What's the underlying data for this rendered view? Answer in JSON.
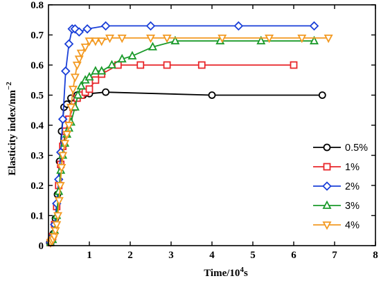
{
  "chart_data": {
    "type": "line",
    "title": "",
    "xlabel_main": "Time/10",
    "xlabel_sup": "4",
    "xlabel_tail": "s",
    "ylabel_main": "Elasticity index/nm",
    "ylabel_sup": "−2",
    "xlim": [
      0,
      8
    ],
    "ylim": [
      0,
      0.8
    ],
    "x_ticks": [
      1,
      2,
      3,
      4,
      5,
      6,
      7,
      8
    ],
    "x_tick_labels": [
      "1",
      "2",
      "3",
      "4",
      "5",
      "6",
      "7",
      "8"
    ],
    "y_ticks": [
      0,
      0.1,
      0.2,
      0.3,
      0.4,
      0.5,
      0.6,
      0.7,
      0.8
    ],
    "y_tick_labels": [
      "0",
      "0.1",
      "0.2",
      "0.3",
      "0.4",
      "0.5",
      "0.6",
      "0.7",
      "0.8"
    ],
    "legend_position": "bottom-right",
    "grid": false,
    "series": [
      {
        "name": "0.5%",
        "color": "#000000",
        "marker": "circle",
        "x": [
          0.03,
          0.08,
          0.12,
          0.17,
          0.22,
          0.27,
          0.32,
          0.38,
          0.45,
          0.55,
          0.7,
          0.85,
          1.0,
          1.4,
          4.0,
          6.7
        ],
        "y": [
          0.01,
          0.02,
          0.04,
          0.09,
          0.17,
          0.28,
          0.38,
          0.46,
          0.47,
          0.49,
          0.5,
          0.5,
          0.505,
          0.51,
          0.5,
          0.5
        ]
      },
      {
        "name": "1%",
        "color": "#e8262a",
        "marker": "square",
        "x": [
          0.05,
          0.1,
          0.15,
          0.2,
          0.25,
          0.3,
          0.35,
          0.42,
          0.5,
          0.6,
          0.7,
          0.8,
          0.9,
          1.0,
          1.15,
          1.3,
          1.7,
          2.25,
          2.9,
          3.75,
          6.0
        ],
        "y": [
          0.01,
          0.03,
          0.07,
          0.13,
          0.2,
          0.27,
          0.33,
          0.38,
          0.42,
          0.46,
          0.49,
          0.5,
          0.51,
          0.52,
          0.55,
          0.57,
          0.6,
          0.6,
          0.6,
          0.6,
          0.6
        ]
      },
      {
        "name": "2%",
        "color": "#1a3fd8",
        "marker": "diamond",
        "x": [
          0.05,
          0.1,
          0.15,
          0.2,
          0.25,
          0.3,
          0.35,
          0.42,
          0.5,
          0.58,
          0.65,
          0.75,
          0.95,
          1.4,
          2.5,
          4.65,
          6.5
        ],
        "y": [
          0.01,
          0.03,
          0.07,
          0.14,
          0.22,
          0.31,
          0.42,
          0.58,
          0.67,
          0.72,
          0.72,
          0.71,
          0.72,
          0.73,
          0.73,
          0.73,
          0.73
        ]
      },
      {
        "name": "3%",
        "color": "#1a9a2a",
        "marker": "triangle-up",
        "x": [
          0.05,
          0.1,
          0.15,
          0.2,
          0.25,
          0.3,
          0.35,
          0.4,
          0.45,
          0.5,
          0.55,
          0.65,
          0.72,
          0.8,
          0.9,
          1.0,
          1.15,
          1.3,
          1.55,
          1.8,
          2.05,
          2.55,
          3.1,
          4.2,
          5.2,
          6.5
        ],
        "y": [
          0.01,
          0.02,
          0.05,
          0.1,
          0.18,
          0.25,
          0.3,
          0.34,
          0.37,
          0.39,
          0.41,
          0.46,
          0.5,
          0.53,
          0.55,
          0.56,
          0.58,
          0.58,
          0.6,
          0.62,
          0.63,
          0.66,
          0.68,
          0.68,
          0.68,
          0.68
        ]
      },
      {
        "name": "4%",
        "color": "#f39a22",
        "marker": "triangle-down",
        "x": [
          0.05,
          0.08,
          0.11,
          0.14,
          0.17,
          0.2,
          0.23,
          0.26,
          0.29,
          0.32,
          0.35,
          0.4,
          0.45,
          0.5,
          0.55,
          0.6,
          0.65,
          0.7,
          0.75,
          0.8,
          0.9,
          1.0,
          1.15,
          1.3,
          1.5,
          1.8,
          2.5,
          2.9,
          4.25,
          5.4,
          6.2,
          6.85
        ],
        "y": [
          0.01,
          0.015,
          0.02,
          0.03,
          0.05,
          0.07,
          0.1,
          0.15,
          0.2,
          0.26,
          0.3,
          0.34,
          0.37,
          0.4,
          0.46,
          0.52,
          0.56,
          0.6,
          0.62,
          0.64,
          0.66,
          0.68,
          0.68,
          0.68,
          0.69,
          0.69,
          0.69,
          0.69,
          0.69,
          0.69,
          0.69,
          0.69
        ]
      }
    ]
  }
}
